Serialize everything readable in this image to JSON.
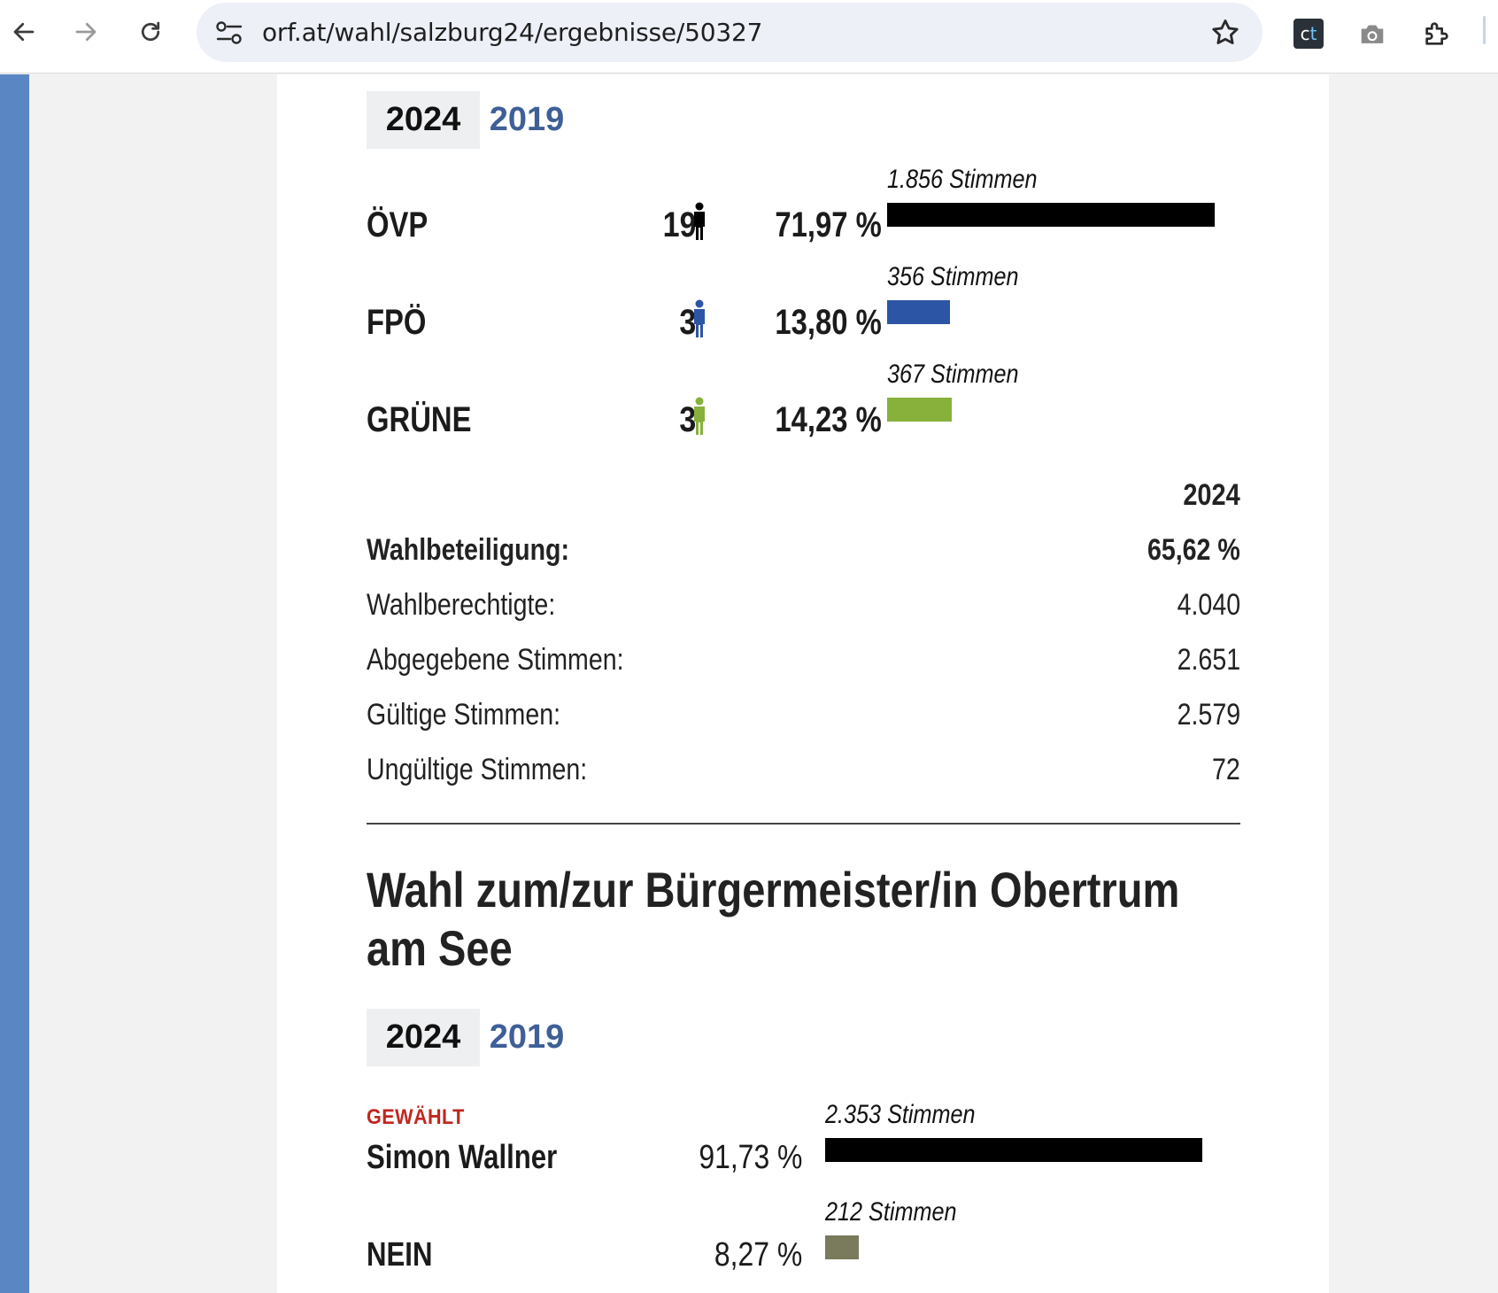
{
  "browser": {
    "url": "orf.at/wahl/salzburg24/ergebnisse/50327"
  },
  "colors": {
    "oevp": "#000000",
    "fpoe": "#2d55a5",
    "gruene": "#87b13a",
    "nein": "#7a7a5c",
    "elected": "#c0271e",
    "tab_link": "#3e5f97"
  },
  "gemeinderat": {
    "tabs": [
      {
        "label": "2024",
        "active": true
      },
      {
        "label": "2019",
        "active": false
      }
    ],
    "parties": [
      {
        "name": "ÖVP",
        "seats": "19",
        "percent": "71,97 %",
        "votes_label": "1.856 Stimmen",
        "votes": 1856,
        "share": 0.7197
      },
      {
        "name": "FPÖ",
        "seats": "3",
        "percent": "13,80 %",
        "votes_label": "356 Stimmen",
        "votes": 356,
        "share": 0.138
      },
      {
        "name": "GRÜNE",
        "seats": "3",
        "percent": "14,23 %",
        "votes_label": "367 Stimmen",
        "votes": 367,
        "share": 0.1423
      }
    ],
    "stats": {
      "year_header": "2024",
      "rows": [
        {
          "label": "Wahlbeteiligung:",
          "value": "65,62 %"
        },
        {
          "label": "Wahlberechtigte:",
          "value": "4.040"
        },
        {
          "label": "Abgegebene Stimmen:",
          "value": "2.651"
        },
        {
          "label": "Gültige Stimmen:",
          "value": "2.579"
        },
        {
          "label": "Ungültige Stimmen:",
          "value": "72"
        }
      ]
    }
  },
  "buergermeister": {
    "heading_line1": "Wahl zum/zur Bürgermeister/in Obertrum",
    "heading_line2": "am See",
    "tabs": [
      {
        "label": "2024",
        "active": true
      },
      {
        "label": "2019",
        "active": false
      }
    ],
    "candidates": [
      {
        "badge": "GEWÄHLT",
        "name": "Simon Wallner",
        "percent": "91,73 %",
        "votes_label": "2.353 Stimmen",
        "votes": 2353,
        "share": 0.9173
      },
      {
        "badge": "",
        "name": "NEIN",
        "percent": "8,27 %",
        "votes_label": "212 Stimmen",
        "votes": 212,
        "share": 0.0827
      }
    ]
  }
}
